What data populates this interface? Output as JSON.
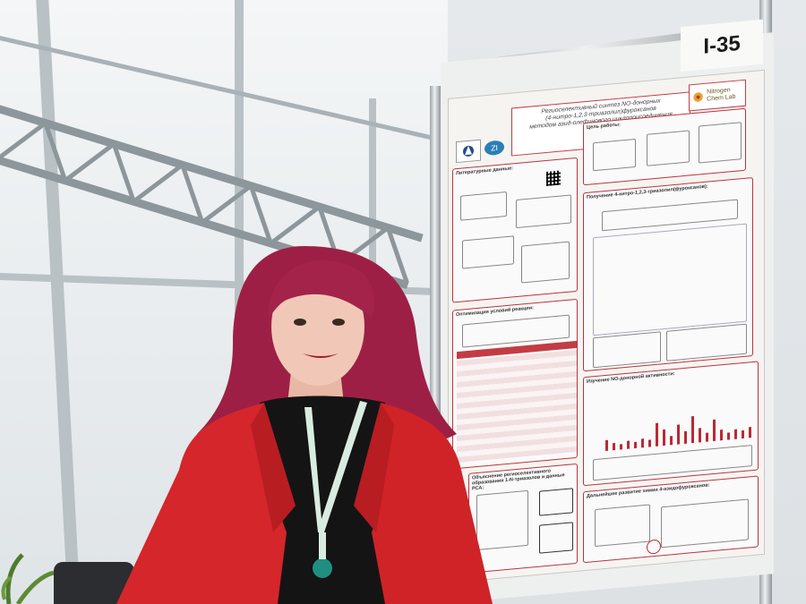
{
  "scene": {
    "description_free": true,
    "colors": {
      "jacket": "#d4262b",
      "hair": "#9e1f45",
      "shirt": "#141414",
      "lanyard": "#d9ece2",
      "lanyard_text": "#1f8f82",
      "poster_accent": "#c33c44",
      "background": "#e6e9ec"
    }
  },
  "poster": {
    "board_id": "I-35",
    "title_line1": "Региоселективный синтез NO-донорных",
    "title_line2": "(4-нитро-1,2,3-триазолил)фуроксанов",
    "title_line3": "методом азид-олефинового циклоприсоединения",
    "logo_text": "Nitrogen Chem Lab",
    "section_aim": "Цель работы:",
    "section_literature": "Литературные данные:",
    "section_synthesis": "Получение 4-нитро-1,2,3-триазолил(фуроксанов):",
    "section_optimization": "Оптимизация условий реакции:",
    "section_no_activity": "Изучение NO-донорной активности:",
    "section_regio": "Объяснение региоселективного образования 1-N-триазолов и данные РСА:",
    "section_outlook": "Дальнейшее развитие химии 4-азидофуроксанов:"
  }
}
